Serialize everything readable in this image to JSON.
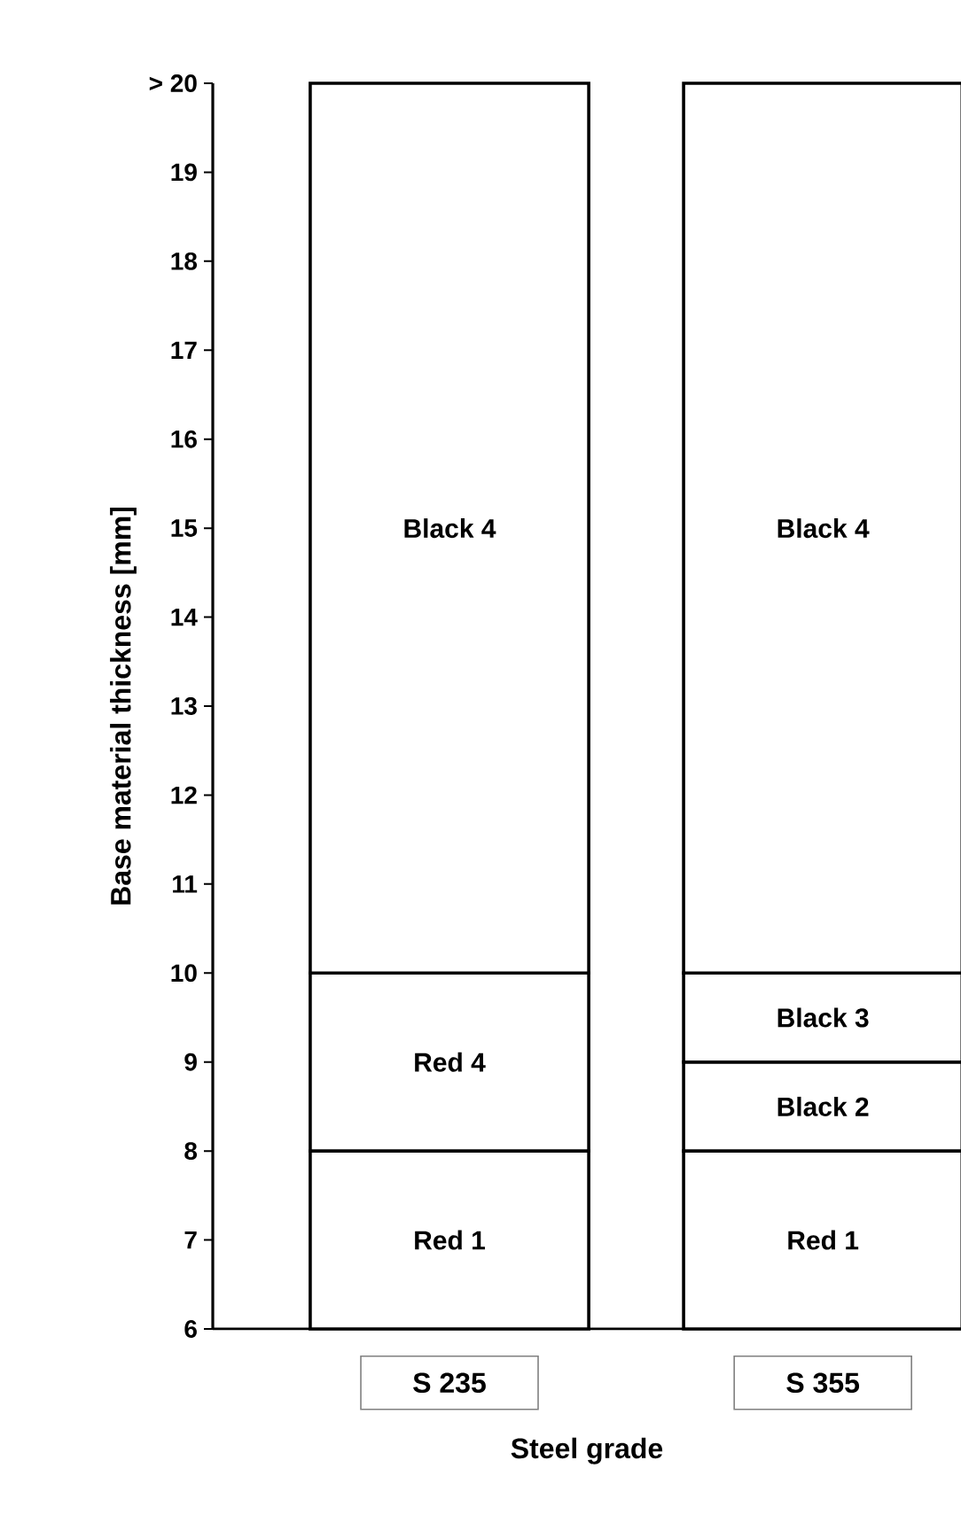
{
  "chart_data": {
    "type": "bar",
    "xlabel": "Steel grade",
    "ylabel": "Base material thickness [mm]",
    "categories": [
      "S 235",
      "S 355"
    ],
    "ylim": [
      6,
      20
    ],
    "yticks": [
      6,
      7,
      8,
      9,
      10,
      11,
      12,
      13,
      14,
      15,
      16,
      17,
      18,
      19,
      {
        "value": 20,
        "label": "> 20"
      }
    ],
    "grid": false,
    "series": [
      {
        "color": "#ffffff",
        "base": [
          6,
          6
        ],
        "values": [
          2,
          2
        ],
        "value_labels": [
          "Red 1",
          "Red 1"
        ]
      },
      {
        "color": "#ffffff",
        "base": [
          8,
          8
        ],
        "values": [
          2,
          1
        ],
        "value_labels": [
          "Red 4",
          "Black 2"
        ]
      },
      {
        "color": "#ffffff",
        "base": [
          null,
          9
        ],
        "values": [
          null,
          1
        ],
        "value_labels": [
          null,
          "Black 3"
        ]
      },
      {
        "color": "#ffffff",
        "base": [
          10,
          10
        ],
        "values": [
          10,
          10
        ],
        "value_labels": [
          "Black 4",
          "Black 4"
        ]
      }
    ]
  }
}
